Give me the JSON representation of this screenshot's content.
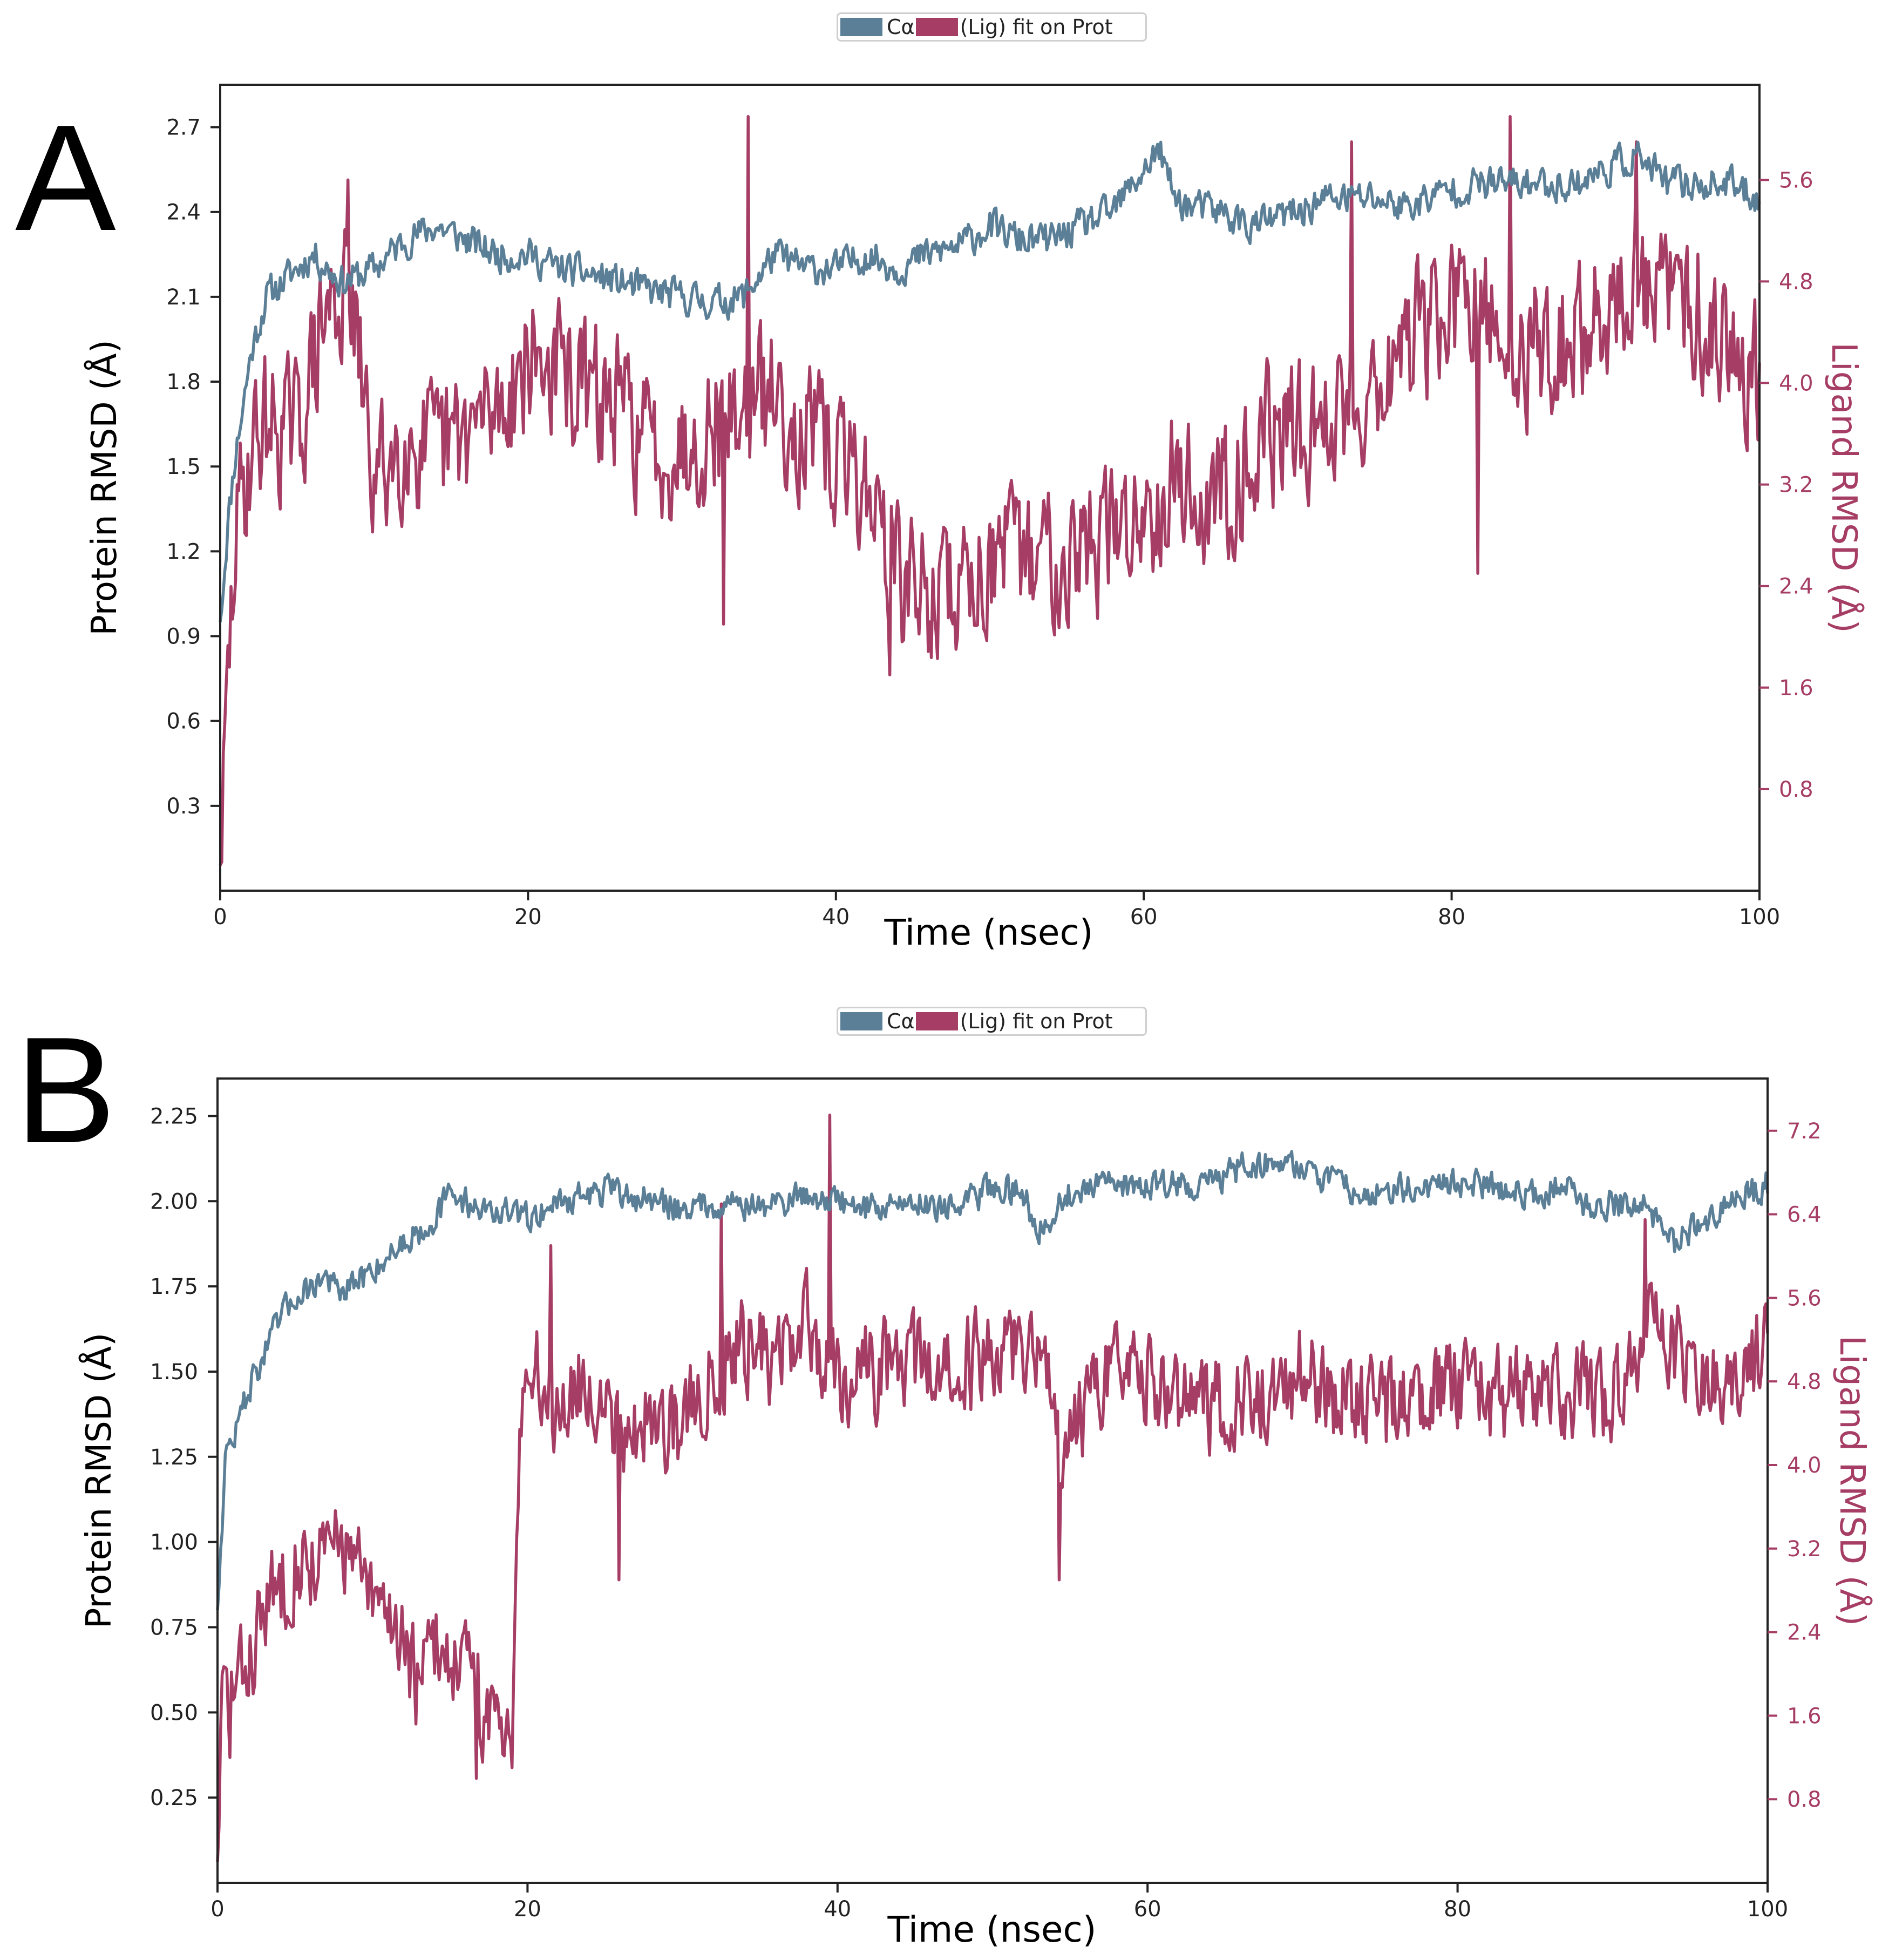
{
  "colors": {
    "protein": "#5b7f96",
    "ligand": "#a63d64",
    "axis": "#222222"
  },
  "chart_data": [
    {
      "type": "line",
      "panel_label": "A",
      "legend": {
        "protein_label": "Cα",
        "ligand_label": "(Lig) fit on Prot"
      },
      "xlabel": "Time (nsec)",
      "ylabel_left": "Protein RMSD (Å)",
      "ylabel_right": "Ligand RMSD (Å)",
      "xlim": [
        0,
        100
      ],
      "ylim_left": [
        0,
        2.85
      ],
      "ylim_right": [
        0,
        6.35
      ],
      "xticks": [
        "0",
        "20",
        "40",
        "60",
        "80",
        "100"
      ],
      "yticks_left": [
        "0.3",
        "0.6",
        "0.9",
        "1.2",
        "1.5",
        "1.8",
        "2.1",
        "2.4",
        "2.7"
      ],
      "yticks_right": [
        "0.8",
        "1.6",
        "2.4",
        "3.2",
        "4.0",
        "4.8",
        "5.6"
      ],
      "series": [
        {
          "name": "Cα",
          "axis": "left",
          "x": [
            0,
            0.5,
            1,
            2,
            3,
            4,
            5,
            6,
            7,
            8,
            10,
            12,
            14,
            16,
            18,
            20,
            22,
            24,
            26,
            28,
            30,
            32,
            34,
            36,
            38,
            40,
            42,
            44,
            46,
            48,
            50,
            52,
            54,
            56,
            58,
            60,
            61,
            62,
            63,
            65,
            67,
            70,
            72,
            75,
            77,
            80,
            82,
            85,
            88,
            90,
            92,
            94,
            96,
            98,
            100
          ],
          "y": [
            0.95,
            1.3,
            1.55,
            1.9,
            2.1,
            2.15,
            2.2,
            2.25,
            2.2,
            2.15,
            2.2,
            2.3,
            2.35,
            2.3,
            2.25,
            2.25,
            2.2,
            2.18,
            2.15,
            2.12,
            2.1,
            2.08,
            2.1,
            2.25,
            2.2,
            2.2,
            2.25,
            2.2,
            2.25,
            2.28,
            2.35,
            2.3,
            2.3,
            2.35,
            2.4,
            2.55,
            2.62,
            2.45,
            2.42,
            2.4,
            2.35,
            2.4,
            2.45,
            2.45,
            2.42,
            2.48,
            2.5,
            2.5,
            2.5,
            2.55,
            2.6,
            2.5,
            2.5,
            2.5,
            2.45
          ],
          "noise": 0.055,
          "seed": 11
        },
        {
          "name": "(Lig) fit on Prot",
          "axis": "right",
          "x": [
            0,
            0.5,
            1,
            2,
            3,
            5,
            7,
            8,
            9,
            10,
            12,
            14,
            16,
            18,
            20,
            22,
            24,
            26,
            28,
            30,
            32,
            34,
            36,
            38,
            40,
            42,
            44,
            46,
            48,
            50,
            52,
            54,
            56,
            58,
            60,
            62,
            64,
            66,
            68,
            70,
            72,
            75,
            78,
            80,
            82,
            84,
            86,
            88,
            90,
            92,
            94,
            96,
            98,
            100
          ],
          "y": [
            0.2,
            1.6,
            2.8,
            3.5,
            3.7,
            3.6,
            4.6,
            4.7,
            4.2,
            3.2,
            3.6,
            3.4,
            3.6,
            3.8,
            4.2,
            4.1,
            3.9,
            3.8,
            3.5,
            3.5,
            3.7,
            3.8,
            3.9,
            3.6,
            3.4,
            3.2,
            2.5,
            2.3,
            2.4,
            2.6,
            2.6,
            2.7,
            2.7,
            2.8,
            3.0,
            3.3,
            3.0,
            3.3,
            3.6,
            3.6,
            3.7,
            4.0,
            4.4,
            4.6,
            4.5,
            4.2,
            4.3,
            4.3,
            4.6,
            4.7,
            4.7,
            4.6,
            4.3,
            4.1
          ],
          "noise": 0.5,
          "seed": 29,
          "spikes": [
            [
              34.3,
              6.1
            ],
            [
              8.3,
              5.6
            ],
            [
              83.8,
              6.1
            ],
            [
              92,
              5.9
            ],
            [
              73.5,
              5.9
            ],
            [
              43.5,
              1.7
            ],
            [
              32.7,
              2.1
            ],
            [
              81.7,
              2.5
            ]
          ]
        }
      ]
    },
    {
      "type": "line",
      "panel_label": "B",
      "legend": {
        "protein_label": "Cα",
        "ligand_label": "(Lig) fit on Prot"
      },
      "xlabel": "Time (nsec)",
      "ylabel_left": "Protein RMSD (Å)",
      "ylabel_right": "Ligand RMSD (Å)",
      "xlim": [
        0,
        100
      ],
      "ylim_left": [
        0,
        2.36
      ],
      "ylim_right": [
        0,
        7.7
      ],
      "xticks": [
        "0",
        "20",
        "40",
        "60",
        "80",
        "100"
      ],
      "yticks_left": [
        "0.25",
        "0.50",
        "0.75",
        "1.00",
        "1.25",
        "1.50",
        "1.75",
        "2.00",
        "2.25"
      ],
      "yticks_right": [
        "0.8",
        "1.6",
        "2.4",
        "3.2",
        "4.0",
        "4.8",
        "5.6",
        "6.4",
        "7.2"
      ],
      "series": [
        {
          "name": "Cα",
          "axis": "left",
          "x": [
            0,
            0.5,
            1,
            2,
            3,
            4,
            5,
            6,
            7,
            8,
            10,
            12,
            14,
            15,
            17,
            20,
            22,
            25,
            28,
            30,
            33,
            35,
            38,
            40,
            42,
            45,
            48,
            50,
            52,
            53,
            55,
            58,
            60,
            62,
            64,
            66,
            68,
            70,
            72,
            75,
            78,
            80,
            82,
            85,
            87,
            88,
            90,
            92,
            94,
            96,
            98,
            100
          ],
          "y": [
            0.8,
            1.25,
            1.3,
            1.45,
            1.55,
            1.65,
            1.72,
            1.75,
            1.78,
            1.72,
            1.8,
            1.88,
            1.95,
            2.02,
            1.98,
            1.95,
            2.0,
            2.03,
            2.0,
            1.98,
            2.0,
            1.98,
            2.02,
            2.0,
            1.98,
            2.0,
            1.98,
            2.05,
            2.02,
            1.92,
            2.02,
            2.05,
            2.05,
            2.05,
            2.05,
            2.1,
            2.12,
            2.1,
            2.05,
            2.02,
            2.05,
            2.05,
            2.05,
            2.02,
            2.05,
            1.98,
            2.0,
            1.98,
            1.88,
            1.95,
            2.0,
            2.05
          ],
          "noise": 0.04,
          "seed": 47
        },
        {
          "name": "(Lig) fit on Prot",
          "axis": "right",
          "x": [
            0,
            0.3,
            1,
            2,
            3,
            5,
            7,
            8,
            9,
            10,
            11,
            12,
            13,
            14,
            15,
            16,
            17,
            18,
            19,
            19.5,
            20,
            22,
            24,
            26,
            28,
            30,
            32,
            34,
            36,
            38,
            40,
            42,
            44,
            46,
            48,
            50,
            52,
            54,
            54.5,
            56,
            58,
            60,
            62,
            64,
            66,
            68,
            70,
            72,
            75,
            78,
            80,
            82,
            84,
            86,
            88,
            90,
            92,
            94,
            96,
            98,
            100
          ],
          "y": [
            0.2,
            1.8,
            1.8,
            2.1,
            2.6,
            3.1,
            3.1,
            3.3,
            3.0,
            2.6,
            2.6,
            2.4,
            1.8,
            2.3,
            2.2,
            2.1,
            1.6,
            1.6,
            1.5,
            4.6,
            4.9,
            4.6,
            4.8,
            4.4,
            4.4,
            4.4,
            4.9,
            5.2,
            5.0,
            5.3,
            4.9,
            4.9,
            5.0,
            4.9,
            4.9,
            5.1,
            5.2,
            5.0,
            3.8,
            4.6,
            4.8,
            4.9,
            4.7,
            4.5,
            4.7,
            4.6,
            4.9,
            4.7,
            4.5,
            4.6,
            4.8,
            4.6,
            4.7,
            4.7,
            4.7,
            4.6,
            5.3,
            5.2,
            4.7,
            4.9,
            5.1
          ],
          "noise": 0.42,
          "seed": 83,
          "spikes": [
            [
              39.5,
              7.35
            ],
            [
              54.3,
              2.9
            ],
            [
              25.9,
              2.9
            ],
            [
              16.7,
              1.0
            ],
            [
              0.8,
              1.2
            ],
            [
              92.1,
              6.35
            ],
            [
              21.5,
              6.1
            ],
            [
              32.5,
              6.5
            ]
          ]
        }
      ]
    }
  ]
}
